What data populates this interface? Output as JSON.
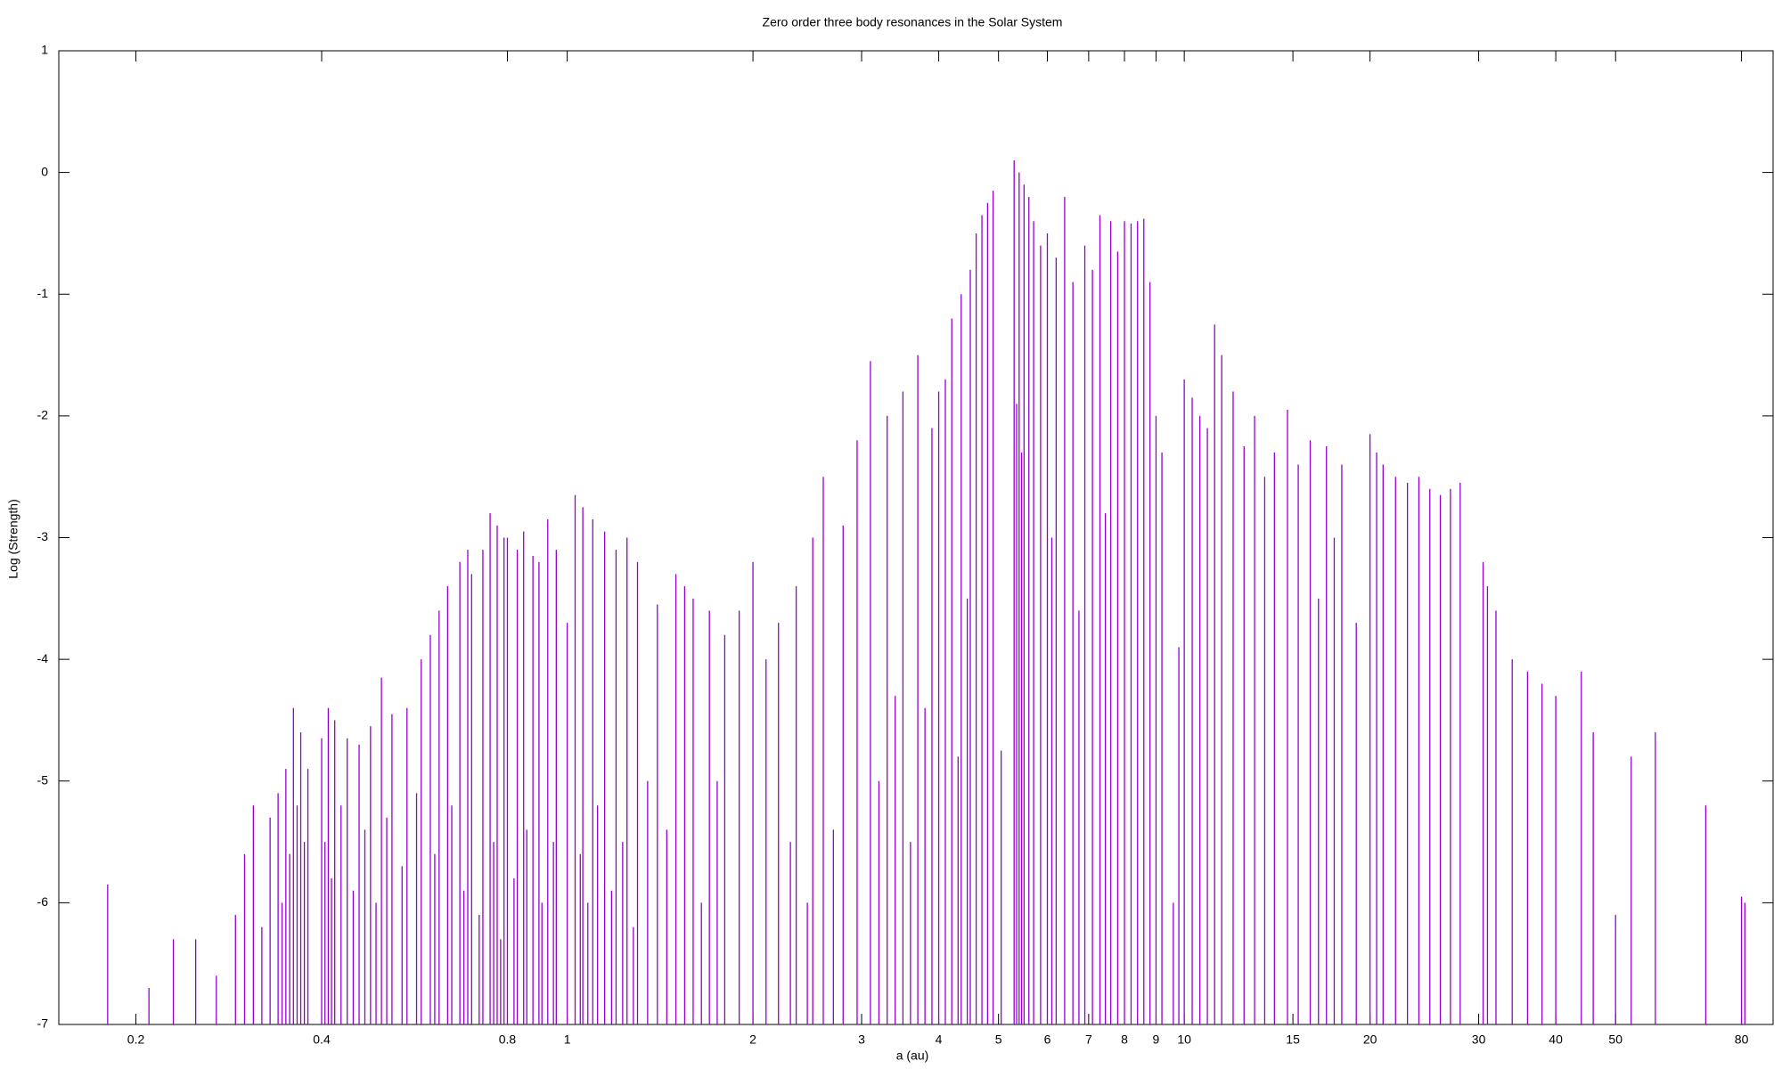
{
  "chart_data": {
    "type": "impulse",
    "title": "Zero order three body resonances in the Solar System",
    "x_label": "a (au)",
    "y_label": "Log (Strength)",
    "color": "#9400d3",
    "x_log": true,
    "xlim": [
      0.15,
      90
    ],
    "ylim": [
      -7,
      1
    ],
    "xticks": [
      0.2,
      0.4,
      0.8,
      1,
      2,
      3,
      4,
      5,
      6,
      7,
      8,
      9,
      10,
      15,
      20,
      30,
      40,
      50,
      80
    ],
    "yticks": [
      1,
      0,
      -1,
      -2,
      -3,
      -4,
      -5,
      -6,
      -7
    ],
    "x": [
      0.18,
      0.21,
      0.23,
      0.25,
      0.27,
      0.29,
      0.3,
      0.31,
      0.32,
      0.33,
      0.34,
      0.345,
      0.35,
      0.355,
      0.36,
      0.365,
      0.37,
      0.375,
      0.38,
      0.4,
      0.405,
      0.41,
      0.415,
      0.42,
      0.43,
      0.44,
      0.45,
      0.46,
      0.47,
      0.48,
      0.49,
      0.5,
      0.51,
      0.52,
      0.54,
      0.55,
      0.57,
      0.58,
      0.6,
      0.61,
      0.62,
      0.64,
      0.65,
      0.67,
      0.68,
      0.69,
      0.7,
      0.72,
      0.73,
      0.75,
      0.76,
      0.77,
      0.78,
      0.79,
      0.8,
      0.82,
      0.83,
      0.85,
      0.86,
      0.88,
      0.9,
      0.91,
      0.93,
      0.95,
      0.96,
      1.0,
      1.03,
      1.05,
      1.06,
      1.08,
      1.1,
      1.12,
      1.15,
      1.18,
      1.2,
      1.23,
      1.25,
      1.28,
      1.3,
      1.35,
      1.4,
      1.45,
      1.5,
      1.55,
      1.6,
      1.65,
      1.7,
      1.75,
      1.8,
      1.9,
      2.0,
      2.1,
      2.2,
      2.3,
      2.35,
      2.45,
      2.5,
      2.6,
      2.7,
      2.8,
      2.95,
      3.1,
      3.2,
      3.3,
      3.4,
      3.5,
      3.6,
      3.7,
      3.8,
      3.9,
      4.0,
      4.1,
      4.2,
      4.3,
      4.35,
      4.45,
      4.5,
      4.6,
      4.7,
      4.8,
      4.9,
      5.05,
      5.3,
      5.35,
      5.4,
      5.45,
      5.5,
      5.6,
      5.7,
      5.85,
      6.0,
      6.1,
      6.2,
      6.4,
      6.6,
      6.75,
      6.9,
      7.1,
      7.3,
      7.45,
      7.6,
      7.8,
      8.0,
      8.2,
      8.4,
      8.6,
      8.8,
      9.0,
      9.2,
      9.6,
      9.8,
      10.0,
      10.3,
      10.6,
      10.9,
      11.2,
      11.5,
      12.0,
      12.5,
      13.0,
      13.5,
      14.0,
      14.7,
      15.3,
      16.0,
      16.5,
      17.0,
      17.5,
      18.0,
      19.0,
      20.0,
      20.5,
      21.0,
      22.0,
      23.0,
      24.0,
      25.0,
      26.0,
      27.0,
      28.0,
      30.5,
      31.0,
      32.0,
      34.0,
      36.0,
      38.0,
      40.0,
      44.0,
      46.0,
      50.0,
      53.0,
      58.0,
      70.0,
      80.0,
      81.0
    ],
    "values": [
      -5.85,
      -6.7,
      -6.3,
      -6.3,
      -6.6,
      -6.1,
      -5.6,
      -5.2,
      -6.2,
      -5.3,
      -5.1,
      -6.0,
      -4.9,
      -5.6,
      -4.4,
      -5.2,
      -4.6,
      -5.5,
      -4.9,
      -4.65,
      -5.5,
      -4.4,
      -5.8,
      -4.5,
      -5.2,
      -4.65,
      -5.9,
      -4.7,
      -5.4,
      -4.55,
      -6.0,
      -4.15,
      -5.3,
      -4.45,
      -5.7,
      -4.4,
      -5.1,
      -4.0,
      -3.8,
      -5.6,
      -3.6,
      -3.4,
      -5.2,
      -3.2,
      -5.9,
      -3.1,
      -3.3,
      -6.1,
      -3.1,
      -2.8,
      -5.5,
      -2.9,
      -6.3,
      -3.0,
      -3.0,
      -5.8,
      -3.1,
      -2.95,
      -5.4,
      -3.15,
      -3.2,
      -6.0,
      -2.85,
      -5.5,
      -3.1,
      -3.7,
      -2.65,
      -5.6,
      -2.75,
      -6.0,
      -2.85,
      -5.2,
      -2.95,
      -5.9,
      -3.1,
      -5.5,
      -3.0,
      -6.2,
      -3.2,
      -5.0,
      -3.55,
      -5.4,
      -3.3,
      -3.4,
      -3.5,
      -6.0,
      -3.6,
      -5.0,
      -3.8,
      -3.6,
      -3.2,
      -4.0,
      -3.7,
      -5.5,
      -3.4,
      -6.0,
      -3.0,
      -2.5,
      -5.4,
      -2.9,
      -2.2,
      -1.55,
      -5.0,
      -2.0,
      -4.3,
      -1.8,
      -5.5,
      -1.5,
      -4.4,
      -2.1,
      -1.8,
      -1.7,
      -1.2,
      -4.8,
      -1.0,
      -3.5,
      -0.8,
      -0.5,
      -0.35,
      -0.25,
      -0.15,
      -4.75,
      0.1,
      -1.9,
      0.0,
      -2.3,
      -0.1,
      -0.2,
      -0.4,
      -0.6,
      -0.5,
      -3.0,
      -0.7,
      -0.2,
      -0.9,
      -3.6,
      -0.6,
      -0.8,
      -0.35,
      -2.8,
      -0.4,
      -0.65,
      -0.4,
      -0.42,
      -0.4,
      -0.38,
      -0.9,
      -2.0,
      -2.3,
      -6.0,
      -3.9,
      -1.7,
      -1.85,
      -2.0,
      -2.1,
      -1.25,
      -1.5,
      -1.8,
      -2.25,
      -2.0,
      -2.5,
      -2.3,
      -1.95,
      -2.4,
      -2.2,
      -3.5,
      -2.25,
      -3.0,
      -2.4,
      -3.7,
      -2.15,
      -2.3,
      -2.4,
      -2.5,
      -2.55,
      -2.5,
      -2.6,
      -2.65,
      -2.6,
      -2.55,
      -3.2,
      -3.4,
      -3.6,
      -4.0,
      -4.1,
      -4.2,
      -4.3,
      -4.1,
      -4.6,
      -6.1,
      -4.8,
      -4.6,
      -5.2,
      -5.95,
      -6.0
    ]
  }
}
